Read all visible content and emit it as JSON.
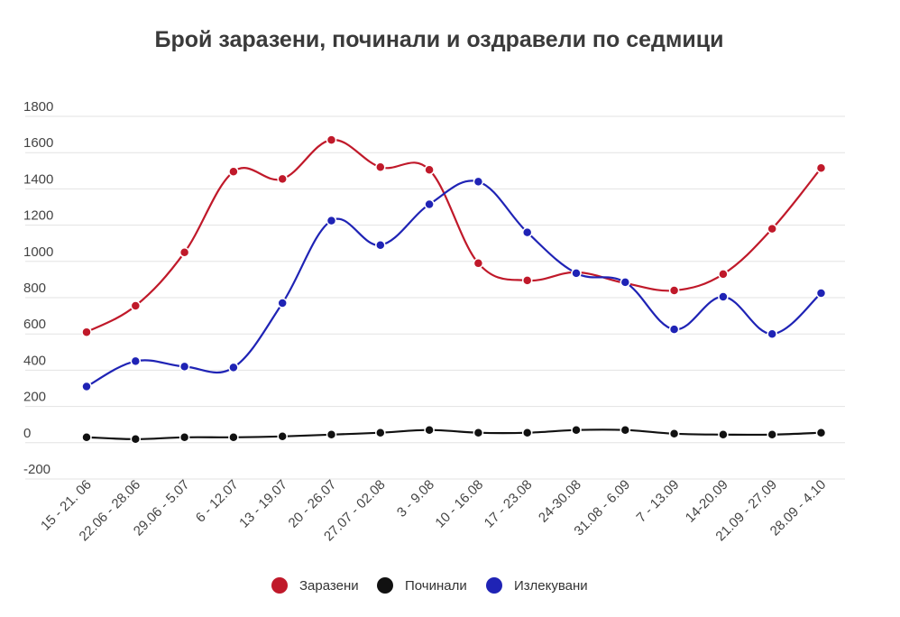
{
  "chart_data": {
    "type": "line",
    "title": "Брой заразени, починали и оздравели по седмици",
    "xlabel": "",
    "ylabel": "",
    "ylim": [
      -200,
      1800
    ],
    "yticks": [
      -200,
      0,
      200,
      400,
      600,
      800,
      1000,
      1200,
      1400,
      1600,
      1800
    ],
    "ytick_labels": [
      "-200",
      "0",
      "200",
      "400",
      "600",
      "800",
      "1000",
      "1200",
      "1400",
      "1600",
      "1800"
    ],
    "categories": [
      "15 - 21. 06",
      "22.06 - 28.06",
      "29.06 - 5.07",
      "6 - 12.07",
      "13 - 19.07",
      "20 - 26.07",
      "27.07 - 02.08",
      "3 - 9.08",
      "10 - 16.08",
      "17 - 23.08",
      "24-30.08",
      "31.08 - 6.09",
      "7 - 13.09",
      "14-20.09",
      "21.09 - 27.09",
      "28.09 - 4.10"
    ],
    "grid": true,
    "legend_position": "bottom",
    "series": [
      {
        "name": "Заразени",
        "color": "#c0192a",
        "values": [
          610,
          755,
          1050,
          1495,
          1455,
          1670,
          1520,
          1505,
          990,
          895,
          940,
          880,
          840,
          930,
          1180,
          1515
        ]
      },
      {
        "name": "Починали",
        "color": "#111111",
        "values": [
          30,
          20,
          30,
          30,
          35,
          45,
          55,
          70,
          55,
          55,
          70,
          70,
          50,
          45,
          45,
          55
        ]
      },
      {
        "name": "Излекувани",
        "color": "#1f23b5",
        "values": [
          310,
          450,
          420,
          415,
          770,
          1225,
          1090,
          1315,
          1440,
          1160,
          935,
          885,
          625,
          805,
          600,
          825
        ]
      }
    ]
  }
}
